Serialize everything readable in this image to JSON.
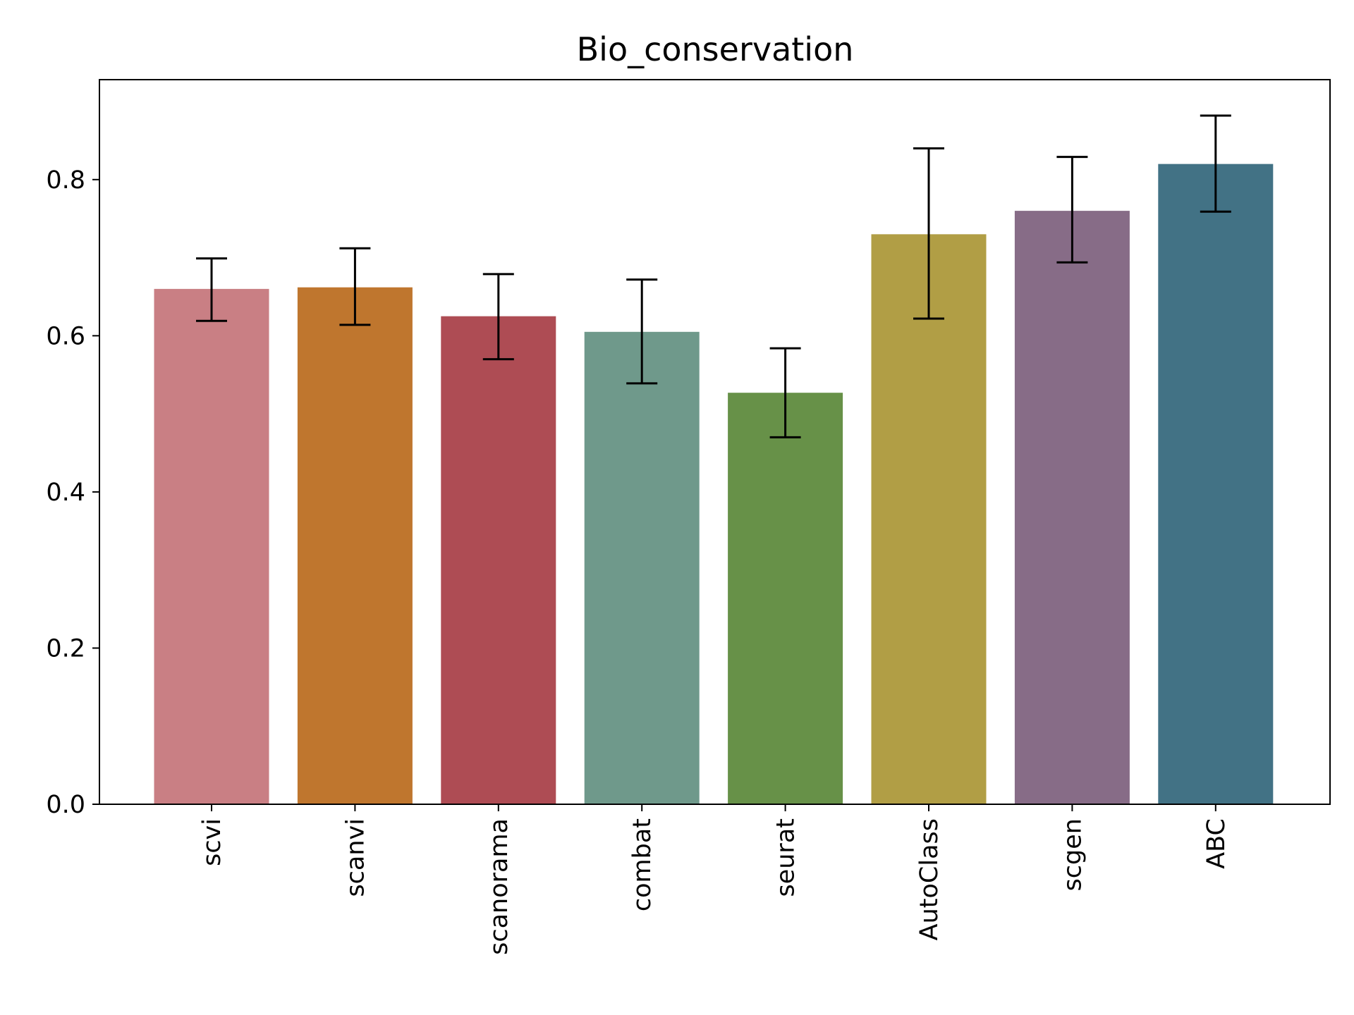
{
  "chart_data": {
    "type": "bar",
    "title": "Bio_conservation",
    "xlabel": "",
    "ylabel": "",
    "categories": [
      "scvi",
      "scanvi",
      "scanorama",
      "combat",
      "seurat",
      "AutoClass",
      "scgen",
      "ABC"
    ],
    "values": [
      0.66,
      0.662,
      0.625,
      0.605,
      0.527,
      0.73,
      0.76,
      0.82
    ],
    "error_low": [
      0.619,
      0.614,
      0.57,
      0.539,
      0.47,
      0.622,
      0.694,
      0.759
    ],
    "error_high": [
      0.699,
      0.712,
      0.679,
      0.672,
      0.584,
      0.84,
      0.829,
      0.882
    ],
    "colors": [
      "#c97f84",
      "#bf762e",
      "#ae4c54",
      "#6f998b",
      "#679148",
      "#b19e45",
      "#876c87",
      "#427285"
    ],
    "ylim": [
      0,
      0.928
    ],
    "yticks": [
      0.0,
      0.2,
      0.4,
      0.6,
      0.8
    ],
    "ytick_labels": [
      "0.0",
      "0.2",
      "0.4",
      "0.6",
      "0.8"
    ],
    "xtick_rotation": "vertical",
    "grid": false,
    "legend": "none"
  }
}
